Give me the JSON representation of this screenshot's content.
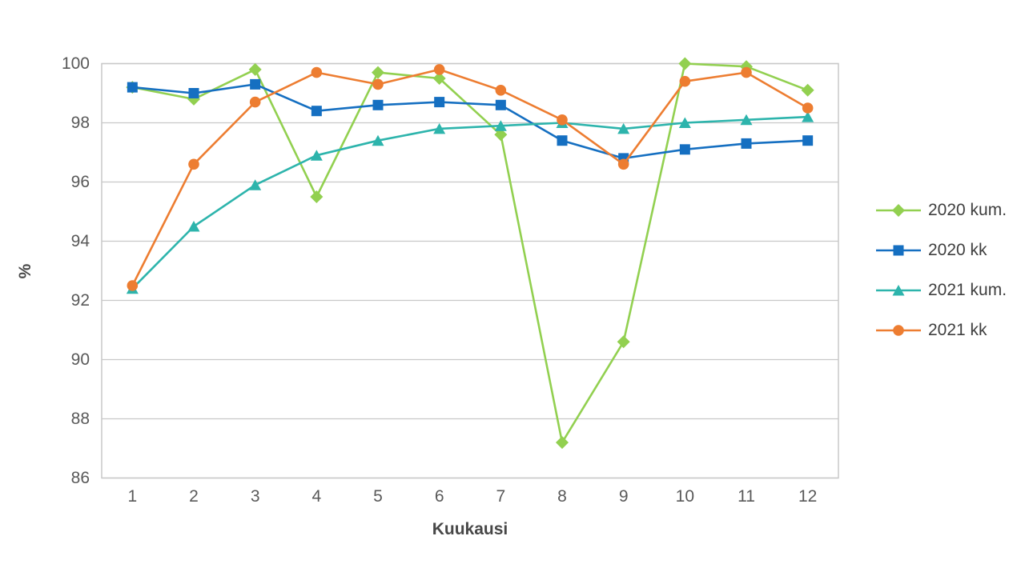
{
  "chart_data": {
    "type": "line",
    "title": "",
    "xlabel": "Kuukausi",
    "ylabel": "%",
    "x": [
      1,
      2,
      3,
      4,
      5,
      6,
      7,
      8,
      9,
      10,
      11,
      12
    ],
    "ylim": [
      86,
      100
    ],
    "ytick_step": 2,
    "grid": true,
    "legend_position": "right",
    "gridline_color": "#c8c8c8",
    "tick_text_color": "#595959",
    "axis_title_color": "#474747",
    "series": [
      {
        "name": "2020 kum.",
        "marker": "diamond",
        "color": "#92d050",
        "values": [
          99.2,
          98.8,
          99.8,
          95.5,
          99.7,
          99.5,
          97.6,
          87.2,
          90.6,
          100.0,
          99.9,
          99.1
        ]
      },
      {
        "name": "2020 kk",
        "marker": "square",
        "color": "#156fc1",
        "values": [
          99.2,
          99.0,
          99.3,
          98.4,
          98.6,
          98.7,
          98.6,
          97.4,
          96.8,
          97.1,
          97.3,
          97.4
        ]
      },
      {
        "name": "2021 kum.",
        "marker": "triangle",
        "color": "#2db4ac",
        "values": [
          92.4,
          94.5,
          95.9,
          96.9,
          97.4,
          97.8,
          97.9,
          98.0,
          97.8,
          98.0,
          98.1,
          98.2
        ]
      },
      {
        "name": "2021 kk",
        "marker": "circle",
        "color": "#ed7d31",
        "values": [
          92.5,
          96.6,
          98.7,
          99.7,
          99.3,
          99.8,
          99.1,
          98.1,
          96.6,
          99.4,
          99.7,
          98.5
        ]
      }
    ]
  }
}
